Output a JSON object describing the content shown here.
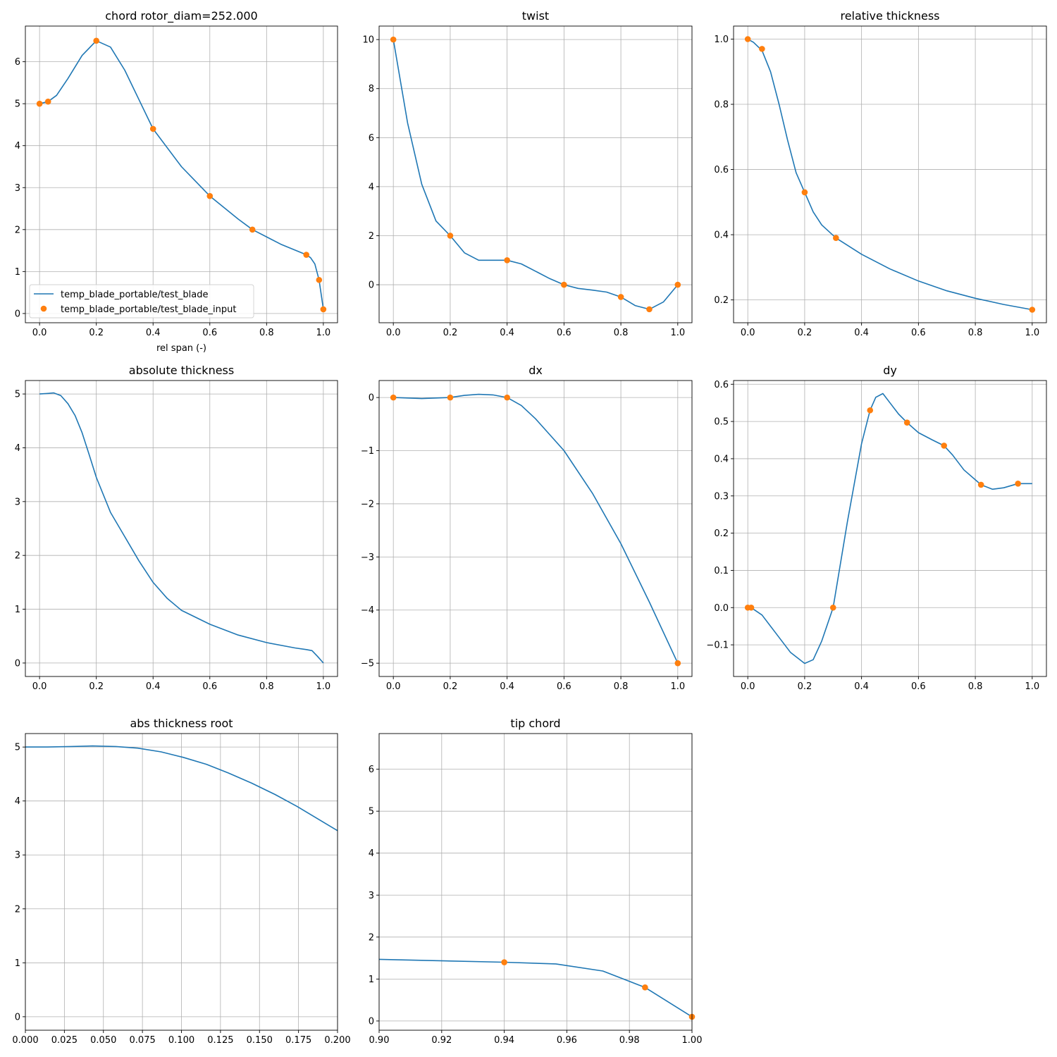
{
  "colors": {
    "line": "#1f77b4",
    "marker": "#ff7f0e",
    "grid": "#b0b0b0"
  },
  "legend": {
    "line_label": "temp_blade_portable/test_blade",
    "marker_label": "temp_blade_portable/test_blade_input"
  },
  "chart_data": [
    {
      "type": "line",
      "title": "chord rotor_diam=252.000",
      "xlabel": "rel span (-)",
      "xlim": [
        -0.05,
        1.05
      ],
      "ylim": [
        -0.22,
        6.85
      ],
      "xticks": [
        0,
        0.2,
        0.4,
        0.6,
        0.8,
        1.0
      ],
      "xtick_labels": [
        "0.0",
        "0.2",
        "0.4",
        "0.6",
        "0.8",
        "1.0"
      ],
      "yticks": [
        0,
        1,
        2,
        3,
        4,
        5,
        6
      ],
      "ytick_labels": [
        "0",
        "1",
        "2",
        "3",
        "4",
        "5",
        "6"
      ],
      "legend": true,
      "line": {
        "x": [
          0,
          0.03,
          0.06,
          0.1,
          0.15,
          0.2,
          0.25,
          0.3,
          0.35,
          0.4,
          0.5,
          0.6,
          0.7,
          0.75,
          0.85,
          0.94,
          0.955,
          0.97,
          0.985,
          1.0
        ],
        "y": [
          5.0,
          5.05,
          5.2,
          5.6,
          6.15,
          6.5,
          6.35,
          5.8,
          5.1,
          4.4,
          3.5,
          2.8,
          2.25,
          2.0,
          1.65,
          1.4,
          1.33,
          1.18,
          0.8,
          0.1
        ]
      },
      "points": {
        "x": [
          0,
          0.03,
          0.2,
          0.4,
          0.6,
          0.75,
          0.94,
          0.985,
          1.0
        ],
        "y": [
          5.0,
          5.05,
          6.5,
          4.4,
          2.8,
          2.0,
          1.4,
          0.8,
          0.1
        ]
      }
    },
    {
      "type": "line",
      "title": "twist",
      "xlim": [
        -0.05,
        1.05
      ],
      "ylim": [
        -1.55,
        10.55
      ],
      "xticks": [
        0,
        0.2,
        0.4,
        0.6,
        0.8,
        1.0
      ],
      "xtick_labels": [
        "0.0",
        "0.2",
        "0.4",
        "0.6",
        "0.8",
        "1.0"
      ],
      "yticks": [
        0,
        2,
        4,
        6,
        8,
        10
      ],
      "ytick_labels": [
        "0",
        "2",
        "4",
        "6",
        "8",
        "10"
      ],
      "line": {
        "x": [
          0,
          0.05,
          0.1,
          0.15,
          0.2,
          0.25,
          0.3,
          0.35,
          0.4,
          0.45,
          0.5,
          0.55,
          0.6,
          0.65,
          0.7,
          0.75,
          0.8,
          0.85,
          0.9,
          0.95,
          1.0
        ],
        "y": [
          10,
          6.6,
          4.1,
          2.6,
          2.0,
          1.3,
          1.0,
          1.0,
          1.0,
          0.85,
          0.55,
          0.25,
          0.0,
          -0.15,
          -0.22,
          -0.3,
          -0.5,
          -0.85,
          -1.0,
          -0.7,
          0.0
        ]
      },
      "points": {
        "x": [
          0,
          0.2,
          0.4,
          0.6,
          0.8,
          0.9,
          1.0
        ],
        "y": [
          10,
          2,
          1,
          0,
          -0.5,
          -1.0,
          0
        ]
      }
    },
    {
      "type": "line",
      "title": "relative thickness",
      "xlim": [
        -0.05,
        1.05
      ],
      "ylim": [
        0.13,
        1.04
      ],
      "xticks": [
        0,
        0.2,
        0.4,
        0.6,
        0.8,
        1.0
      ],
      "xtick_labels": [
        "0.0",
        "0.2",
        "0.4",
        "0.6",
        "0.8",
        "1.0"
      ],
      "yticks": [
        0.2,
        0.4,
        0.6,
        0.8,
        1.0
      ],
      "ytick_labels": [
        "0.2",
        "0.4",
        "0.6",
        "0.8",
        "1.0"
      ],
      "line": {
        "x": [
          0,
          0.02,
          0.05,
          0.08,
          0.11,
          0.14,
          0.17,
          0.2,
          0.23,
          0.26,
          0.31,
          0.4,
          0.5,
          0.6,
          0.7,
          0.8,
          0.9,
          1.0
        ],
        "y": [
          1.0,
          0.99,
          0.965,
          0.9,
          0.8,
          0.69,
          0.59,
          0.53,
          0.47,
          0.43,
          0.39,
          0.34,
          0.295,
          0.258,
          0.228,
          0.205,
          0.186,
          0.17
        ]
      },
      "points": {
        "x": [
          0,
          0.05,
          0.2,
          0.31,
          1.0
        ],
        "y": [
          1.0,
          0.97,
          0.53,
          0.39,
          0.17
        ]
      }
    },
    {
      "type": "line",
      "title": "absolute thickness",
      "xlim": [
        -0.05,
        1.05
      ],
      "ylim": [
        -0.25,
        5.25
      ],
      "xticks": [
        0,
        0.2,
        0.4,
        0.6,
        0.8,
        1.0
      ],
      "xtick_labels": [
        "0.0",
        "0.2",
        "0.4",
        "0.6",
        "0.8",
        "1.0"
      ],
      "yticks": [
        0,
        1,
        2,
        3,
        4,
        5
      ],
      "ytick_labels": [
        "0",
        "1",
        "2",
        "3",
        "4",
        "5"
      ],
      "line": {
        "x": [
          0,
          0.03,
          0.05,
          0.075,
          0.1,
          0.125,
          0.15,
          0.175,
          0.2,
          0.25,
          0.3,
          0.35,
          0.4,
          0.45,
          0.5,
          0.6,
          0.7,
          0.8,
          0.9,
          0.94,
          0.96,
          0.98,
          1.0
        ],
        "y": [
          5.0,
          5.01,
          5.02,
          4.97,
          4.82,
          4.6,
          4.28,
          3.87,
          3.45,
          2.8,
          2.35,
          1.9,
          1.5,
          1.2,
          0.98,
          0.72,
          0.52,
          0.38,
          0.28,
          0.25,
          0.23,
          0.12,
          0.0
        ]
      }
    },
    {
      "type": "line",
      "title": "dx",
      "xlim": [
        -0.05,
        1.05
      ],
      "ylim": [
        -5.25,
        0.32
      ],
      "xticks": [
        0,
        0.2,
        0.4,
        0.6,
        0.8,
        1.0
      ],
      "xtick_labels": [
        "0.0",
        "0.2",
        "0.4",
        "0.6",
        "0.8",
        "1.0"
      ],
      "yticks": [
        0,
        -1,
        -2,
        -3,
        -4,
        -5
      ],
      "ytick_labels": [
        "0",
        "−1",
        "−2",
        "−3",
        "−4",
        "−5"
      ],
      "line": {
        "x": [
          0,
          0.1,
          0.2,
          0.25,
          0.3,
          0.35,
          0.4,
          0.45,
          0.5,
          0.55,
          0.6,
          0.7,
          0.8,
          0.9,
          1.0
        ],
        "y": [
          0,
          -0.02,
          0,
          0.04,
          0.06,
          0.05,
          0,
          -0.15,
          -0.4,
          -0.7,
          -1.0,
          -1.8,
          -2.75,
          -3.85,
          -5.0
        ]
      },
      "points": {
        "x": [
          0,
          0.2,
          0.4,
          1.0
        ],
        "y": [
          0,
          0,
          0,
          -5.0
        ]
      }
    },
    {
      "type": "line",
      "title": "dy",
      "xlim": [
        -0.05,
        1.05
      ],
      "ylim": [
        -0.185,
        0.61
      ],
      "xticks": [
        0,
        0.2,
        0.4,
        0.6,
        0.8,
        1.0
      ],
      "xtick_labels": [
        "0.0",
        "0.2",
        "0.4",
        "0.6",
        "0.8",
        "1.0"
      ],
      "yticks": [
        -0.1,
        0.0,
        0.1,
        0.2,
        0.3,
        0.4,
        0.5,
        0.6
      ],
      "ytick_labels": [
        "−0.1",
        "0.0",
        "0.1",
        "0.2",
        "0.3",
        "0.4",
        "0.5",
        "0.6"
      ],
      "line": {
        "x": [
          0,
          0.012,
          0.05,
          0.1,
          0.15,
          0.2,
          0.23,
          0.26,
          0.3,
          0.35,
          0.4,
          0.43,
          0.45,
          0.475,
          0.5,
          0.53,
          0.56,
          0.6,
          0.65,
          0.69,
          0.72,
          0.76,
          0.82,
          0.86,
          0.9,
          0.95,
          1.0
        ],
        "y": [
          0,
          0,
          -0.02,
          -0.07,
          -0.12,
          -0.15,
          -0.14,
          -0.09,
          0.0,
          0.23,
          0.44,
          0.53,
          0.565,
          0.575,
          0.55,
          0.52,
          0.497,
          0.47,
          0.45,
          0.435,
          0.41,
          0.37,
          0.33,
          0.318,
          0.322,
          0.333,
          0.333
        ]
      },
      "points": {
        "x": [
          0,
          0.012,
          0.3,
          0.43,
          0.56,
          0.69,
          0.82,
          0.95
        ],
        "y": [
          0,
          0,
          0,
          0.53,
          0.497,
          0.435,
          0.33,
          0.333
        ]
      }
    },
    {
      "type": "line",
      "title": "abs thickness root",
      "xlim": [
        0,
        0.2
      ],
      "ylim": [
        -0.25,
        5.25
      ],
      "xticks": [
        0,
        0.025,
        0.05,
        0.075,
        0.1,
        0.125,
        0.15,
        0.175,
        0.2
      ],
      "xtick_labels": [
        "0.000",
        "0.025",
        "0.050",
        "0.075",
        "0.100",
        "0.125",
        "0.150",
        "0.175",
        "0.200"
      ],
      "yticks": [
        0,
        1,
        2,
        3,
        4,
        5
      ],
      "ytick_labels": [
        "0",
        "1",
        "2",
        "3",
        "4",
        "5"
      ],
      "line": {
        "x": [
          0,
          0.014,
          0.029,
          0.043,
          0.058,
          0.072,
          0.087,
          0.101,
          0.116,
          0.13,
          0.145,
          0.16,
          0.174,
          0.2
        ],
        "y": [
          5.0,
          5.0,
          5.01,
          5.02,
          5.01,
          4.98,
          4.91,
          4.81,
          4.68,
          4.52,
          4.33,
          4.12,
          3.9,
          3.45
        ]
      }
    },
    {
      "type": "line",
      "title": "tip chord",
      "xlim": [
        0.9,
        1.0
      ],
      "ylim": [
        -0.22,
        6.85
      ],
      "xticks": [
        0.9,
        0.92,
        0.94,
        0.96,
        0.98,
        1.0
      ],
      "xtick_labels": [
        "0.90",
        "0.92",
        "0.94",
        "0.96",
        "0.98",
        "1.00"
      ],
      "yticks": [
        0,
        1,
        2,
        3,
        4,
        5,
        6
      ],
      "ytick_labels": [
        "0",
        "1",
        "2",
        "3",
        "4",
        "5",
        "6"
      ],
      "line": {
        "x": [
          0.9,
          0.94,
          0.9565,
          0.9715,
          0.985,
          1.0
        ],
        "y": [
          1.47,
          1.4,
          1.36,
          1.19,
          0.8,
          0.1
        ]
      },
      "points": {
        "x": [
          0.94,
          0.985,
          1.0
        ],
        "y": [
          1.4,
          0.8,
          0.1
        ]
      }
    }
  ]
}
